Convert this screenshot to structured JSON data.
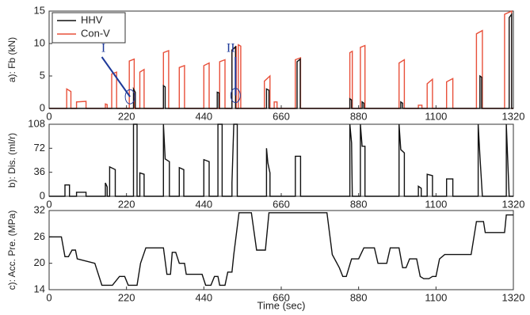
{
  "chart_data": [
    {
      "type": "line",
      "ylabel": "a): Fb (kN)",
      "xlim": [
        0,
        1320
      ],
      "xticks": [
        0,
        220,
        440,
        660,
        880,
        1100,
        1320
      ],
      "ylim": [
        0,
        15
      ],
      "yticks": [
        0,
        5,
        10,
        15
      ],
      "grid": false,
      "legend": "upper left",
      "annotations": [
        "I",
        "II"
      ],
      "series": [
        {
          "name": "HHV",
          "color": "#111111",
          "x": [
            0,
            240,
            240,
            245,
            245,
            325,
            325,
            330,
            330,
            478,
            478,
            483,
            483,
            520,
            520,
            530,
            530,
            618,
            618,
            625,
            625,
            705,
            705,
            714,
            714,
            855,
            855,
            860,
            860,
            890,
            890,
            895,
            895,
            1000,
            1000,
            1005,
            1005,
            1225,
            1225,
            1230,
            1230,
            1308,
            1308,
            1315,
            1315,
            1320
          ],
          "values": [
            0,
            0,
            3,
            2.5,
            0,
            0,
            3.5,
            3.3,
            0,
            0,
            2.5,
            2.4,
            0,
            0,
            9,
            9.5,
            0,
            0,
            3,
            2.8,
            0,
            0,
            7.2,
            7.6,
            0,
            0,
            1.5,
            1.3,
            0,
            0,
            1,
            0.8,
            0,
            0,
            1,
            0.8,
            0,
            0,
            5,
            4.8,
            0,
            0,
            14,
            14.5,
            0,
            0
          ]
        },
        {
          "name": "Con-V",
          "color": "#e8503a",
          "x": [
            0,
            50,
            50,
            62,
            62,
            78,
            78,
            105,
            105,
            160,
            160,
            165,
            165,
            178,
            178,
            192,
            192,
            228,
            228,
            242,
            242,
            258,
            258,
            270,
            270,
            325,
            325,
            340,
            340,
            370,
            370,
            385,
            385,
            440,
            440,
            455,
            455,
            485,
            485,
            500,
            500,
            520,
            520,
            532,
            532,
            538,
            538,
            545,
            545,
            612,
            612,
            628,
            628,
            640,
            640,
            648,
            648,
            700,
            700,
            715,
            715,
            855,
            855,
            862,
            862,
            885,
            885,
            898,
            898,
            995,
            995,
            1010,
            1010,
            1050,
            1050,
            1060,
            1060,
            1075,
            1075,
            1090,
            1090,
            1130,
            1130,
            1148,
            1148,
            1215,
            1215,
            1232,
            1232,
            1295,
            1295,
            1315,
            1315,
            1320
          ],
          "values": [
            0,
            0,
            3,
            2.6,
            0,
            0,
            1,
            1.1,
            0,
            0,
            0.7,
            0.6,
            0,
            0,
            5.3,
            5.6,
            0,
            0,
            7.3,
            7.6,
            0,
            0,
            5.6,
            6,
            0,
            0,
            8.6,
            8.9,
            0,
            0,
            6.3,
            6.6,
            0,
            0,
            6.6,
            7,
            0,
            0,
            7.2,
            7.5,
            0,
            0,
            9,
            9.5,
            0,
            0,
            9.8,
            9.6,
            0,
            0,
            4.2,
            5,
            0,
            0,
            1,
            1,
            0,
            0,
            7.5,
            7.8,
            0,
            0,
            8.6,
            8.8,
            0,
            0,
            9.4,
            9.7,
            0,
            0,
            7,
            7.5,
            0,
            0,
            0.5,
            0.5,
            0,
            0,
            3.8,
            4.5,
            0,
            0,
            4.1,
            4.6,
            0,
            0,
            11.5,
            12,
            0,
            0,
            14.5,
            15,
            0,
            0
          ]
        }
      ]
    },
    {
      "type": "line",
      "ylabel": "b): Dis. (ml/r)",
      "xlim": [
        0,
        1320
      ],
      "xticks": [
        0,
        220,
        440,
        660,
        880,
        1100,
        1320
      ],
      "ylim": [
        0,
        108
      ],
      "yticks": [
        0,
        36,
        72,
        108
      ],
      "grid": false,
      "series": [
        {
          "color": "#111111",
          "x": [
            0,
            45,
            45,
            58,
            58,
            78,
            78,
            105,
            105,
            160,
            160,
            165,
            165,
            172,
            172,
            188,
            188,
            240,
            240,
            250,
            250,
            258,
            258,
            270,
            270,
            325,
            325,
            330,
            342,
            342,
            370,
            370,
            383,
            383,
            440,
            440,
            455,
            455,
            480,
            480,
            492,
            492,
            520,
            520,
            525,
            535,
            535,
            618,
            618,
            622,
            628,
            628,
            700,
            700,
            715,
            715,
            855,
            855,
            860,
            862,
            885,
            885,
            890,
            898,
            898,
            995,
            995,
            1000,
            1010,
            1010,
            1050,
            1050,
            1058,
            1058,
            1075,
            1075,
            1090,
            1090,
            1130,
            1130,
            1148,
            1148,
            1220,
            1220,
            1225,
            1232,
            1300,
            1300,
            1308,
            1320
          ],
          "values": [
            0,
            0,
            17,
            17,
            0,
            0,
            6,
            6,
            0,
            0,
            20,
            14,
            0,
            0,
            44,
            40,
            0,
            0,
            108,
            108,
            0,
            0,
            35,
            33,
            0,
            0,
            108,
            56,
            52,
            0,
            0,
            43,
            40,
            0,
            0,
            55,
            52,
            0,
            0,
            108,
            108,
            0,
            0,
            20,
            108,
            108,
            0,
            0,
            72,
            50,
            35,
            0,
            0,
            60,
            60,
            0,
            0,
            108,
            80,
            0,
            0,
            108,
            75,
            75,
            0,
            0,
            108,
            70,
            65,
            0,
            0,
            15,
            12,
            0,
            0,
            33,
            31,
            0,
            0,
            26,
            26,
            0,
            0,
            108,
            60,
            0,
            0,
            108,
            0,
            0
          ]
        }
      ]
    },
    {
      "type": "line",
      "ylabel": "c): Acc. Pre. (MPa)",
      "xlabel": "Time (sec)",
      "xlim": [
        0,
        1320
      ],
      "xticks": [
        0,
        220,
        440,
        660,
        880,
        1100,
        1320
      ],
      "ylim": [
        14,
        32
      ],
      "yticks": [
        14,
        20,
        26,
        32
      ],
      "grid": false,
      "series": [
        {
          "color": "#111111",
          "x": [
            0,
            35,
            45,
            55,
            65,
            75,
            80,
            130,
            150,
            180,
            200,
            215,
            225,
            250,
            260,
            275,
            325,
            335,
            345,
            350,
            360,
            370,
            385,
            390,
            435,
            445,
            460,
            470,
            480,
            485,
            500,
            508,
            520,
            525,
            540,
            575,
            590,
            615,
            625,
            790,
            805,
            825,
            835,
            845,
            860,
            880,
            895,
            925,
            935,
            960,
            970,
            995,
            1005,
            1015,
            1025,
            1045,
            1055,
            1065,
            1080,
            1090,
            1100,
            1110,
            1125,
            1200,
            1215,
            1235,
            1240,
            1295,
            1300,
            1320
          ],
          "values": [
            26,
            26,
            21.5,
            21.5,
            23,
            23,
            21,
            20,
            15,
            15,
            17,
            17,
            15,
            15,
            20,
            23.5,
            23.5,
            17.5,
            17.5,
            22.5,
            22.5,
            20,
            20,
            17.5,
            17.5,
            15,
            15,
            17,
            17,
            15,
            15,
            18,
            18,
            22,
            31.5,
            31.5,
            23,
            23,
            31.5,
            31.5,
            22,
            19,
            17,
            17,
            21,
            21,
            23.5,
            23.5,
            20,
            20,
            23.5,
            23.5,
            19,
            19,
            21,
            21,
            17,
            16.5,
            16.5,
            17,
            17,
            21,
            22,
            22,
            29.5,
            29.5,
            27,
            27,
            31,
            31
          ]
        }
      ]
    }
  ]
}
